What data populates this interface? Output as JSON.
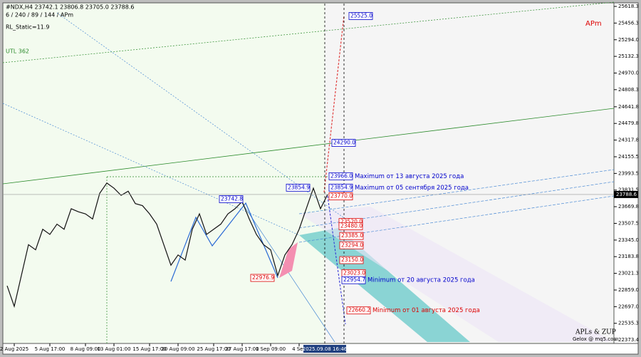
{
  "chart_data": {
    "type": "line",
    "title": "#NDX,H4  23742.1 23806.8 23705.0 23788.6",
    "subtitle": "6 / 240 / 89 / 144 / APm",
    "indicator": "RL_Static=11.9",
    "line_label": "UTL 362",
    "corner_label": "APm",
    "watermark": "APLs & ZUP",
    "watermark_sub": "Gelox @ mq5.com",
    "cursor_label": "2025.09.08 16:46",
    "current_price": 23788.6,
    "ylim": [
      22339,
      25646
    ],
    "yticks": [
      25618.3,
      25456.3,
      {
        "value": 25294.0,
        "label": "25294.0"
      },
      25132.3,
      {
        "value": 24970.0,
        "label": "24970.0"
      },
      24808.3,
      24641.8,
      24479.8,
      24317.8,
      24155.5,
      23993.5,
      23831.5,
      23669.8,
      23507.5,
      {
        "value": 23345.0,
        "label": "23345.0"
      },
      23183.8,
      23021.3,
      {
        "value": 22859.0,
        "label": "22859.0"
      },
      {
        "value": 22697.0,
        "label": "22697.0"
      },
      22535.3,
      22373.4
    ],
    "categories": [
      null,
      "2 Aug 2025",
      null,
      null,
      null,
      null,
      "5 Aug 17:00",
      null,
      null,
      null,
      null,
      "8 Aug 09:00",
      null,
      null,
      null,
      "13 Aug 01:00",
      null,
      null,
      null,
      null,
      "15 Aug 17:00",
      null,
      null,
      null,
      "20 Aug 09:00",
      null,
      null,
      null,
      null,
      "25 Aug 17:00",
      null,
      null,
      null,
      "27 Aug 17:00",
      null,
      null,
      null,
      "1 Sep 09:00",
      null,
      null,
      null,
      "4 Sep",
      null,
      null,
      null,
      null
    ],
    "series": [
      {
        "name": "#NDX,H4",
        "color": "#111111",
        "values": [
          22900,
          22700,
          23000,
          23300,
          23250,
          23450,
          23400,
          23500,
          23450,
          23650,
          23620,
          23600,
          23550,
          23800,
          23900,
          23850,
          23780,
          23820,
          23700,
          23680,
          23600,
          23500,
          23300,
          23100,
          23200,
          23150,
          23450,
          23600,
          23400,
          23450,
          23500,
          23600,
          23650,
          23720,
          23550,
          23400,
          23300,
          23250,
          23000,
          23200,
          23300,
          23450,
          23650,
          23850,
          23650,
          23790
        ]
      }
    ],
    "levels": [
      {
        "value": 25525.0,
        "label": "25525.0",
        "color": "#0000cc"
      },
      {
        "value": 24290.0,
        "label": "24290.0",
        "color": "#0000cc"
      },
      {
        "value": 23966.0,
        "label": "23966.0",
        "color": "#0000cc",
        "note": "Maximum от 13 августа 2025 года"
      },
      {
        "value": 23854.9,
        "label": "23854.9",
        "color": "#0000cc",
        "note": "Maximum от 05 сентября 2025 года"
      },
      {
        "value": 23854.9,
        "label": "23854.9",
        "color": "#0000cc"
      },
      {
        "value": 23770.0,
        "label": "23770.0",
        "color": "#dd0000"
      },
      {
        "value": 23742.8,
        "label": "23742.8",
        "color": "#0000cc"
      },
      {
        "value": 23520.0,
        "label": "23520.0",
        "color": "#dd0000"
      },
      {
        "value": 23480.0,
        "label": "23480.0",
        "color": "#dd0000"
      },
      {
        "value": 23385.0,
        "label": "23385.0",
        "color": "#dd0000"
      },
      {
        "value": 23294.0,
        "label": "23294.0",
        "color": "#dd0000"
      },
      {
        "value": 23150.0,
        "label": "23150.0",
        "color": "#dd0000"
      },
      {
        "value": 23023.0,
        "label": "23023.0",
        "color": "#dd0000"
      },
      {
        "value": 22954.7,
        "label": "22954.7",
        "color": "#0000cc",
        "note": "Minimum от 20 августа 2025 года"
      },
      {
        "value": 22976.9,
        "label": "22976.9",
        "color": "#dd0000"
      },
      {
        "value": 22660.2,
        "label": "22660.2",
        "color": "#dd0000",
        "note": "Minimum от 01 августа 2025 года"
      }
    ]
  }
}
